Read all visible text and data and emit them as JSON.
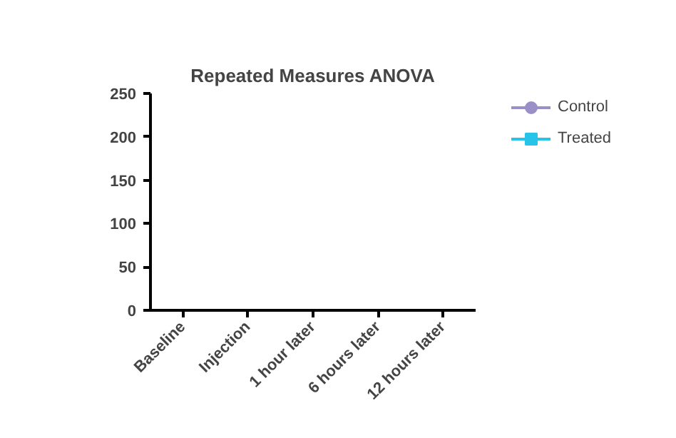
{
  "chart_data": {
    "type": "line",
    "title": "Repeated Measures ANOVA",
    "categories": [
      "Baseline",
      "Injection",
      "1 hour later",
      "6 hours later",
      "12 hours later"
    ],
    "series": [
      {
        "name": "Control",
        "color": "#9b8fc8",
        "marker": "circle",
        "values": [
          null,
          null,
          null,
          null,
          null
        ]
      },
      {
        "name": "Treated",
        "color": "#27c3e8",
        "marker": "square",
        "values": [
          null,
          null,
          null,
          null,
          null
        ]
      }
    ],
    "ylim": [
      0,
      250
    ],
    "yticks": [
      0,
      50,
      100,
      150,
      200,
      250
    ],
    "legend": "top right"
  }
}
